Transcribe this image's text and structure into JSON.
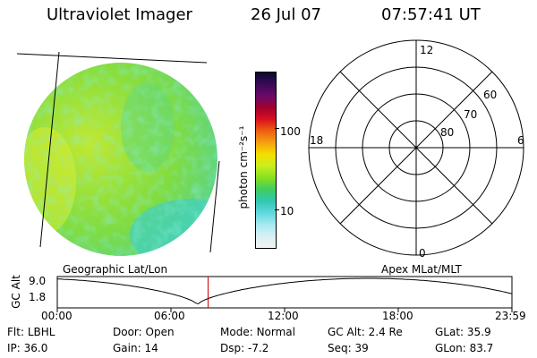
{
  "header": {
    "title": "Ultraviolet Imager",
    "date": "26 Jul 07",
    "time": "07:57:41 UT"
  },
  "colorbar": {
    "unit_label": "photon cm⁻²s⁻¹",
    "ticks": [
      "100",
      "10"
    ],
    "colors": [
      "#0a0a30",
      "#3a0a55",
      "#6a0a6a",
      "#a00030",
      "#d81020",
      "#ee6010",
      "#f5a010",
      "#f5e000",
      "#c8ee20",
      "#88e020",
      "#40cc60",
      "#30c8b0",
      "#60d8e0",
      "#a8e8f0",
      "#d8f0f5",
      "#f2f2f2"
    ]
  },
  "polar_plot": {
    "lat_labels": [
      "60",
      "70",
      "80"
    ],
    "mlt_labels": {
      "top": "12",
      "left": "18",
      "right": "6",
      "bottom": "0"
    }
  },
  "scan_labels": {
    "left": "Geographic Lat/Lon",
    "right": "Apex MLat/MLT"
  },
  "orbit_plot": {
    "ylabel": "GC Alt",
    "y_ticks": [
      "9.0",
      "1.8"
    ],
    "x_ticks": [
      "00:00",
      "06:00",
      "12:00",
      "18:00",
      "23:59"
    ],
    "current_time_marker": "07:57:41"
  },
  "status": {
    "row1": [
      {
        "label": "Flt:",
        "value": "LBHL"
      },
      {
        "label": "Door:",
        "value": "Open"
      },
      {
        "label": "Mode:",
        "value": "Normal"
      },
      {
        "label": "GC Alt:",
        "value": "2.4 Re"
      },
      {
        "label": "GLat:",
        "value": "35.9"
      }
    ],
    "row2": [
      {
        "label": "IP:",
        "value": "36.0"
      },
      {
        "label": "Gain:",
        "value": "14"
      },
      {
        "label": "Dsp:",
        "value": "-7.2"
      },
      {
        "label": "Seq:",
        "value": "39"
      },
      {
        "label": "GLon:",
        "value": "83.7"
      }
    ]
  }
}
